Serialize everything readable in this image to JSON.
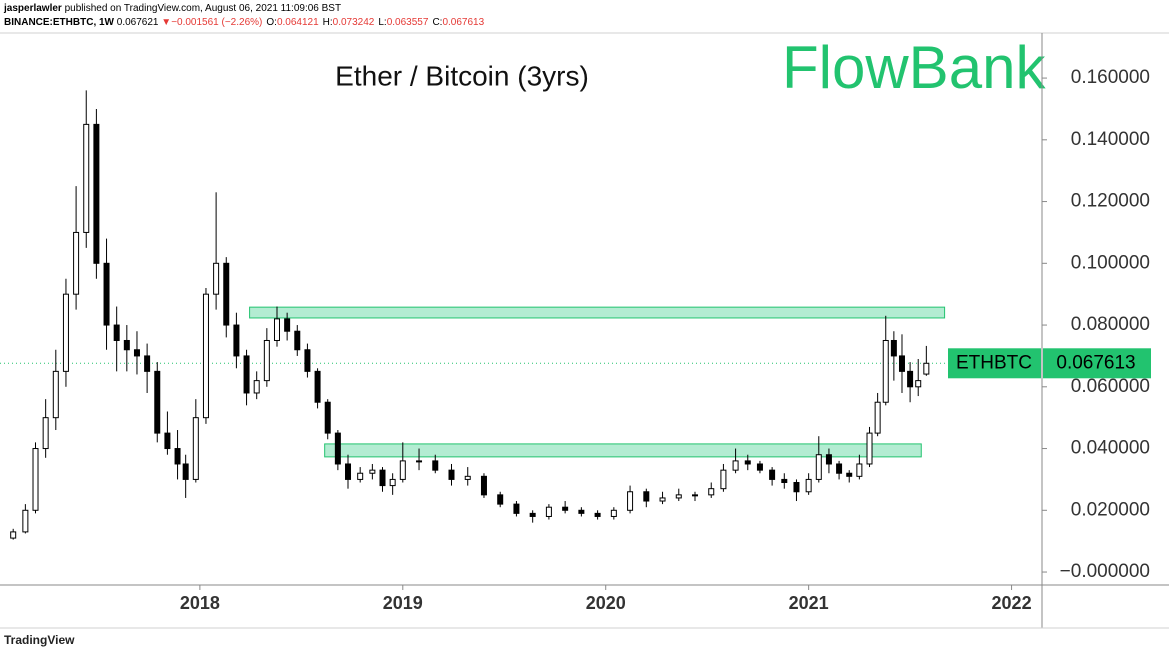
{
  "header": {
    "author": "jasperlawler",
    "published": "published on TradingView.com, August 06, 2021 11:09:06 BST",
    "symbol": "BINANCE:ETHBTC, 1W",
    "price": "0.067621",
    "arrow": "▼",
    "change": "−0.001561 (−2.26%)",
    "ohlc": [
      {
        "label": "O:",
        "value": "0.064121"
      },
      {
        "label": "H:",
        "value": "0.073242"
      },
      {
        "label": "L:",
        "value": "0.063557"
      },
      {
        "label": "C:",
        "value": "0.067613"
      }
    ]
  },
  "chart_data": {
    "type": "candlestick",
    "title": "Ether / Bitcoin (3yrs)",
    "logo": "FlowBank",
    "symbol": "ETHBTC",
    "x": [
      2017.0,
      2017.08,
      2017.14,
      2017.19,
      2017.24,
      2017.29,
      2017.34,
      2017.39,
      2017.44,
      2017.49,
      2017.54,
      2017.59,
      2017.64,
      2017.69,
      2017.74,
      2017.79,
      2017.84,
      2017.89,
      2017.93,
      2017.98,
      2018.03,
      2018.08,
      2018.13,
      2018.18,
      2018.23,
      2018.28,
      2018.33,
      2018.38,
      2018.43,
      2018.48,
      2018.53,
      2018.58,
      2018.63,
      2018.68,
      2018.73,
      2018.79,
      2018.85,
      2018.9,
      2018.95,
      2019.0,
      2019.08,
      2019.16,
      2019.24,
      2019.32,
      2019.4,
      2019.48,
      2019.56,
      2019.64,
      2019.72,
      2019.8,
      2019.88,
      2019.96,
      2020.04,
      2020.12,
      2020.2,
      2020.28,
      2020.36,
      2020.44,
      2020.52,
      2020.58,
      2020.64,
      2020.7,
      2020.76,
      2020.82,
      2020.88,
      2020.94,
      2021.0,
      2021.05,
      2021.1,
      2021.15,
      2021.2,
      2021.25,
      2021.3,
      2021.34,
      2021.38,
      2021.42,
      2021.46,
      2021.5,
      2021.54,
      2021.58
    ],
    "open": [
      0.0105,
      0.011,
      0.013,
      0.02,
      0.04,
      0.05,
      0.065,
      0.09,
      0.11,
      0.145,
      0.1,
      0.08,
      0.075,
      0.072,
      0.07,
      0.065,
      0.045,
      0.04,
      0.035,
      0.03,
      0.05,
      0.09,
      0.1,
      0.08,
      0.07,
      0.058,
      0.062,
      0.075,
      0.082,
      0.078,
      0.072,
      0.065,
      0.055,
      0.045,
      0.035,
      0.03,
      0.032,
      0.033,
      0.028,
      0.03,
      0.036,
      0.036,
      0.033,
      0.03,
      0.031,
      0.025,
      0.022,
      0.019,
      0.018,
      0.021,
      0.02,
      0.019,
      0.018,
      0.02,
      0.026,
      0.023,
      0.024,
      0.025,
      0.025,
      0.027,
      0.033,
      0.036,
      0.035,
      0.033,
      0.03,
      0.029,
      0.026,
      0.03,
      0.038,
      0.035,
      0.032,
      0.031,
      0.035,
      0.045,
      0.055,
      0.075,
      0.07,
      0.065,
      0.06,
      0.064121
    ],
    "high": [
      0.0118,
      0.014,
      0.022,
      0.042,
      0.056,
      0.072,
      0.095,
      0.125,
      0.156,
      0.15,
      0.108,
      0.086,
      0.08,
      0.078,
      0.074,
      0.068,
      0.052,
      0.046,
      0.038,
      0.056,
      0.092,
      0.123,
      0.102,
      0.084,
      0.072,
      0.065,
      0.079,
      0.086,
      0.084,
      0.08,
      0.074,
      0.066,
      0.056,
      0.046,
      0.038,
      0.034,
      0.035,
      0.034,
      0.032,
      0.042,
      0.04,
      0.038,
      0.035,
      0.034,
      0.032,
      0.026,
      0.023,
      0.02,
      0.022,
      0.023,
      0.021,
      0.02,
      0.021,
      0.028,
      0.027,
      0.026,
      0.027,
      0.026,
      0.029,
      0.035,
      0.04,
      0.038,
      0.036,
      0.034,
      0.032,
      0.03,
      0.032,
      0.044,
      0.04,
      0.036,
      0.033,
      0.038,
      0.047,
      0.058,
      0.083,
      0.078,
      0.077,
      0.068,
      0.069,
      0.073242
    ],
    "low": [
      0.01,
      0.0105,
      0.0125,
      0.019,
      0.037,
      0.046,
      0.06,
      0.085,
      0.105,
      0.095,
      0.072,
      0.065,
      0.065,
      0.064,
      0.058,
      0.042,
      0.038,
      0.03,
      0.024,
      0.029,
      0.048,
      0.085,
      0.076,
      0.066,
      0.054,
      0.056,
      0.06,
      0.073,
      0.075,
      0.07,
      0.063,
      0.053,
      0.043,
      0.033,
      0.027,
      0.029,
      0.03,
      0.026,
      0.025,
      0.029,
      0.033,
      0.032,
      0.028,
      0.028,
      0.024,
      0.021,
      0.018,
      0.016,
      0.017,
      0.019,
      0.018,
      0.017,
      0.017,
      0.019,
      0.021,
      0.022,
      0.023,
      0.023,
      0.024,
      0.026,
      0.032,
      0.033,
      0.032,
      0.028,
      0.027,
      0.023,
      0.025,
      0.029,
      0.032,
      0.03,
      0.029,
      0.03,
      0.034,
      0.044,
      0.054,
      0.062,
      0.058,
      0.055,
      0.057,
      0.063557
    ],
    "close": [
      0.011,
      0.013,
      0.02,
      0.04,
      0.05,
      0.065,
      0.09,
      0.11,
      0.145,
      0.1,
      0.08,
      0.075,
      0.072,
      0.07,
      0.065,
      0.045,
      0.04,
      0.035,
      0.03,
      0.05,
      0.09,
      0.1,
      0.08,
      0.07,
      0.058,
      0.062,
      0.075,
      0.082,
      0.078,
      0.072,
      0.065,
      0.055,
      0.045,
      0.035,
      0.03,
      0.032,
      0.033,
      0.028,
      0.03,
      0.036,
      0.036,
      0.033,
      0.03,
      0.031,
      0.025,
      0.022,
      0.019,
      0.018,
      0.021,
      0.02,
      0.019,
      0.018,
      0.02,
      0.026,
      0.023,
      0.024,
      0.025,
      0.025,
      0.027,
      0.033,
      0.036,
      0.035,
      0.033,
      0.03,
      0.029,
      0.026,
      0.03,
      0.038,
      0.035,
      0.032,
      0.031,
      0.035,
      0.045,
      0.055,
      0.075,
      0.07,
      0.065,
      0.06,
      0.062,
      0.067613
    ],
    "up_color": "#ffffff",
    "down_color": "#000000",
    "zone_color": "#b3ecd2",
    "accent_color": "#22c36f",
    "xlim": [
      2017.015,
      2022.15
    ],
    "xticks": [
      2018,
      2019,
      2020,
      2021,
      2022
    ],
    "ylim": [
      -0.0042,
      0.1746
    ],
    "yticks": [
      {
        "value": 0,
        "label": "−0.000000"
      },
      {
        "value": 0.02,
        "label": "0.020000"
      },
      {
        "value": 0.04,
        "label": "0.040000"
      },
      {
        "value": 0.06,
        "label": "0.060000"
      },
      {
        "value": 0.08,
        "label": "0.080000"
      },
      {
        "value": 0.1,
        "label": "0.100000"
      },
      {
        "value": 0.12,
        "label": "0.120000"
      },
      {
        "value": 0.14,
        "label": "0.140000"
      },
      {
        "value": 0.16,
        "label": "0.160000"
      }
    ],
    "zones": [
      {
        "x": [
          2018.245,
          2021.67
        ],
        "y": [
          0.0823,
          0.0858
        ]
      },
      {
        "x": [
          2018.615,
          2021.555
        ],
        "y": [
          0.0373,
          0.0415
        ]
      }
    ]
  },
  "footer": "TradingView"
}
